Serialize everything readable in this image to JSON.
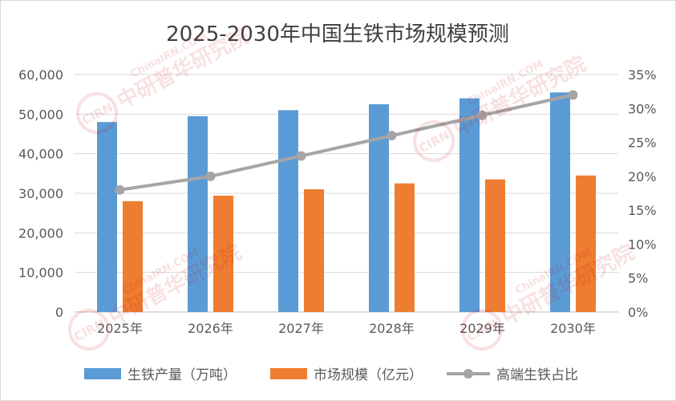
{
  "chart_data": {
    "type": "bar",
    "title": "2025-2030年中国生铁市场规模预测",
    "categories": [
      "2025年",
      "2026年",
      "2027年",
      "2028年",
      "2029年",
      "2030年"
    ],
    "series": [
      {
        "name": "生铁产量（万吨）",
        "type": "bar",
        "axis": "left",
        "color": "#5b9bd5",
        "values": [
          48000,
          49500,
          51000,
          52500,
          54000,
          55500
        ]
      },
      {
        "name": "市场规模（亿元）",
        "type": "bar",
        "axis": "left",
        "color": "#ed7d31",
        "values": [
          28000,
          29400,
          31000,
          32500,
          33500,
          34500
        ]
      },
      {
        "name": "高端生铁占比",
        "type": "line",
        "axis": "right",
        "color": "#a5a5a5",
        "values": [
          0.18,
          0.2,
          0.23,
          0.26,
          0.29,
          0.32
        ]
      }
    ],
    "y_left": {
      "min": 0,
      "max": 60000,
      "ticks": [
        "0",
        "10,000",
        "20,000",
        "30,000",
        "40,000",
        "50,000",
        "60,000"
      ]
    },
    "y_right": {
      "min": 0,
      "max": 0.35,
      "ticks": [
        "0%",
        "5%",
        "10%",
        "15%",
        "20%",
        "25%",
        "30%",
        "35%"
      ]
    },
    "grid": true,
    "legend": "bottom"
  },
  "watermark": {
    "logo_text": "CIRN",
    "name": "中研普华研究院",
    "site": "ChinaIRN.COM"
  }
}
